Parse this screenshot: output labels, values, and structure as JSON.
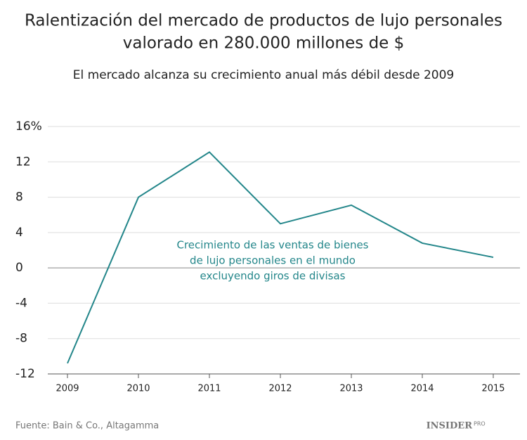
{
  "chart_data": {
    "type": "line",
    "title": [
      "Ralentización del mercado de productos de lujo personales",
      "valorado en 280.000 millones de $"
    ],
    "subtitle": "El mercado alcanza su crecimiento anual más débil desde 2009",
    "categories": [
      "2009",
      "2010",
      "2011",
      "2012",
      "2013",
      "2014",
      "2015"
    ],
    "series": [
      {
        "name": "Crecimiento de las ventas de bienes de lujo personales en el mundo excluyendo giros de divisas",
        "color": "#23868a",
        "values": [
          -10.8,
          8,
          13.1,
          5,
          7.1,
          2.8,
          1.2
        ]
      }
    ],
    "annotation": [
      "Crecimiento de las ventas de bienes",
      "de lujo personales en el mundo",
      "excluyendo giros de divisas"
    ],
    "ylim": [
      -12,
      16
    ],
    "yticks": [
      -12,
      -8,
      -4,
      0,
      4,
      8,
      12,
      {
        "value": 16,
        "label": "16%"
      }
    ],
    "grid": true,
    "source": "Fuente: Bain & Co., Altagamma",
    "logo": {
      "main": "INSIDER",
      "sub": "PRO"
    }
  }
}
